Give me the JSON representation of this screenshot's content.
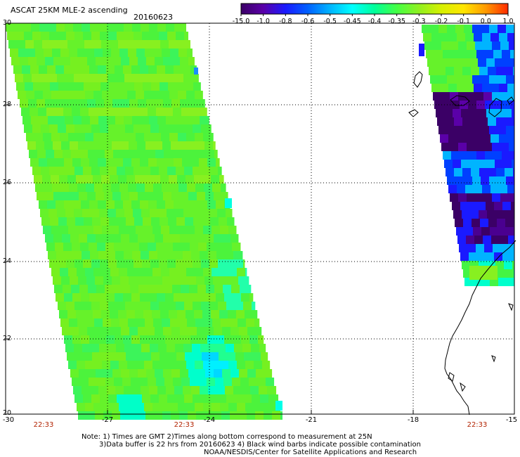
{
  "header": {
    "title": "ASCAT 25KM MLE-2 ascending",
    "date": "20160623"
  },
  "colorbar": {
    "labels": [
      "-15.0",
      "-1.0",
      "-0.8",
      "-0.6",
      "-0.5",
      "-0.45",
      "-0.4",
      "-0.35",
      "-0.3",
      "-0.2",
      "-0.1",
      "0.0",
      "1.0"
    ],
    "colors": [
      "#3b0066",
      "#5a00a8",
      "#1a1aff",
      "#0060ff",
      "#00b4ff",
      "#00ffff",
      "#00ff9a",
      "#44ff44",
      "#90f020",
      "#d6f000",
      "#ffe600",
      "#ff9a00",
      "#ff2a00"
    ]
  },
  "map": {
    "lat_labels": [
      "30",
      "28",
      "26",
      "24",
      "22",
      "20"
    ],
    "lon_labels": [
      "-30",
      "-27",
      "-24",
      "-21",
      "-18",
      "-15"
    ],
    "grid": true,
    "coastline_color": "#000000"
  },
  "swath_times": [
    "22:33",
    "22:33",
    "22:33"
  ],
  "notes": [
    "Note: 1) Times are GMT 2)Times along bottom correspond to measurement at 25N",
    "3)Data buffer is 22 hrs from 20160623 4) Black wind barbs indicate possible contamination",
    "NOAA/NESDIS/Center for Satellite Applications and Research"
  ]
}
